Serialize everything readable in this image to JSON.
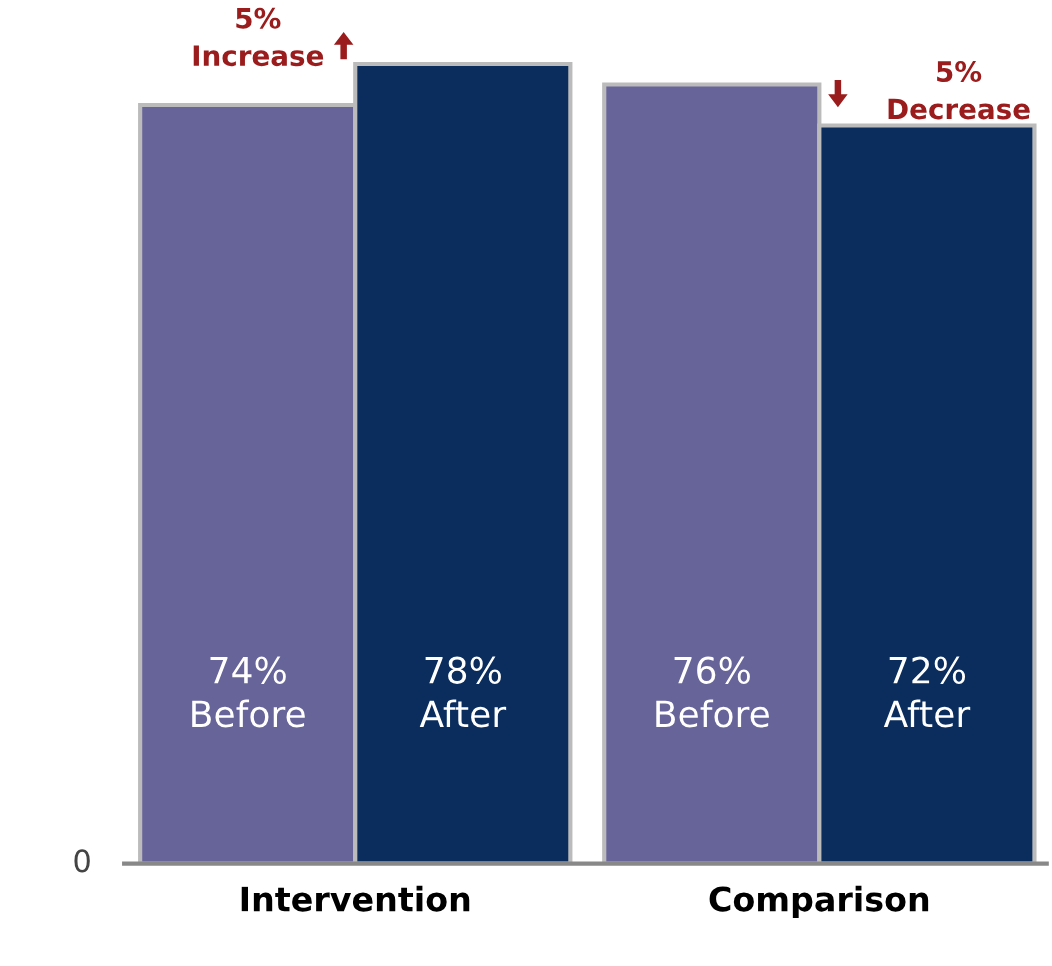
{
  "chart_data": {
    "type": "bar",
    "categories": [
      "Intervention",
      "Comparison"
    ],
    "series": [
      {
        "name": "Before",
        "color": "#67649a",
        "values": [
          74,
          76
        ],
        "value_labels": [
          "74%",
          "76%"
        ]
      },
      {
        "name": "After",
        "color": "#0a2d5e",
        "values": [
          78,
          72
        ],
        "value_labels": [
          "78%",
          "72%"
        ]
      }
    ],
    "grid": false,
    "legend": false,
    "annotations": [
      {
        "text": "5%\nIncrease",
        "x": "Intervention",
        "y": 78
      },
      {
        "text": "5%\nDecrease",
        "x": "Comparison",
        "y": 72
      },
      "0"
    ]
  }
}
